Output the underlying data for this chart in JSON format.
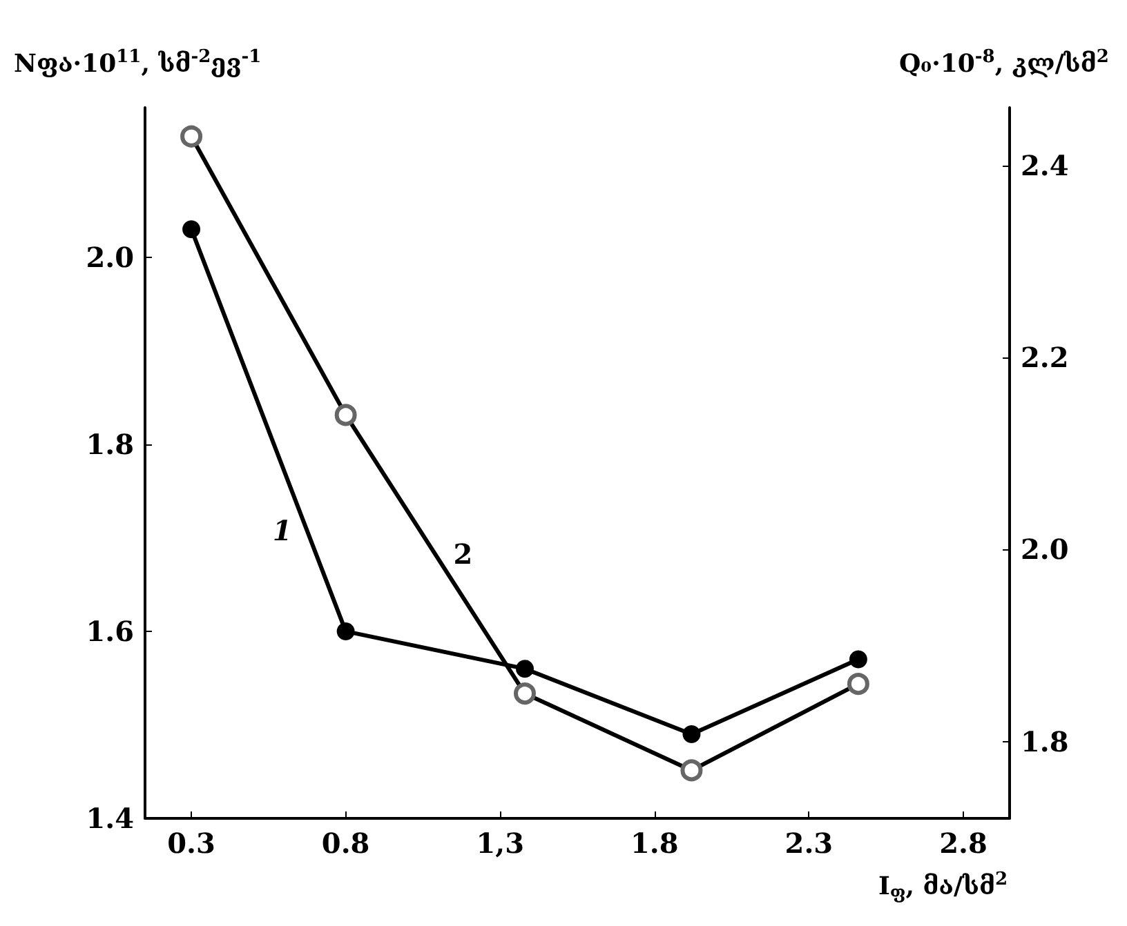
{
  "chart_data": {
    "type": "line",
    "xlabel": "I$_{ფ}$, მა/სმ$^{2}$",
    "ylabel": "Nფა·10$^{11}$, სმ$^{-2}$ევ$^{-1}$",
    "y2label": "Q₀·10$^{-8}$, კლ/სმ$^{2}$",
    "x": [
      0.3,
      0.8,
      1.38,
      1.92,
      2.46
    ],
    "series": [
      {
        "name": "1",
        "color": "#000000",
        "marker": "circle",
        "values": [
          2.03,
          1.6,
          1.56,
          1.49,
          1.57
        ]
      },
      {
        "name": "2",
        "color": "#000000",
        "marker": "circle",
        "axis": "y2",
        "values": [
          2.43,
          2.14,
          1.85,
          1.77,
          1.86
        ]
      }
    ],
    "xlim": [
      0.15,
      2.95
    ],
    "xticks": [
      0.3,
      0.8,
      {
        "value": 1.3,
        "label": "1,3"
      },
      1.8,
      2.3,
      2.8
    ],
    "ylim": [
      1.4,
      2.16
    ],
    "yticks": [
      1.4,
      1.6,
      1.8,
      {
        "value": 2.0,
        "label": "2.0"
      }
    ],
    "y2lim": [
      1.72,
      2.46
    ],
    "y2ticks": [
      1.8,
      {
        "value": 2.0,
        "label": "2.0"
      },
      2.2,
      2.4
    ],
    "grid": false,
    "legend": false,
    "line_style": "solid"
  }
}
